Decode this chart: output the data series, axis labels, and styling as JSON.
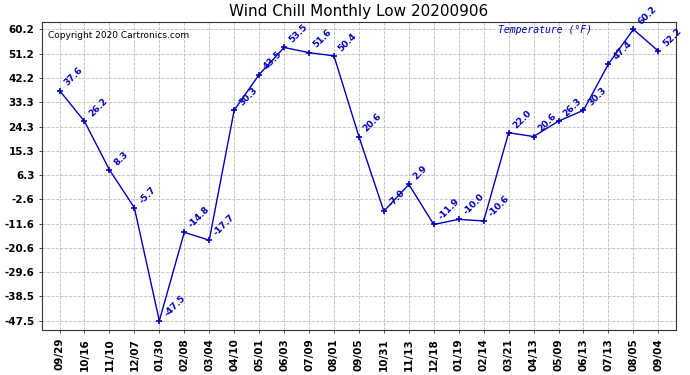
{
  "title": "Wind Chill Monthly Low 20200906",
  "copyright": "Copyright 2020 Cartronics.com",
  "legend_label": "Temperature (°F)",
  "x_labels": [
    "09/29",
    "10/16",
    "11/10",
    "12/07",
    "01/30",
    "02/08",
    "03/04",
    "04/10",
    "05/01",
    "06/03",
    "07/09",
    "08/01",
    "09/05",
    "10/31",
    "11/13",
    "12/18",
    "01/19",
    "02/14",
    "03/21",
    "04/13",
    "05/09",
    "06/13",
    "07/13",
    "08/05",
    "09/04"
  ],
  "y_values": [
    37.6,
    26.2,
    8.3,
    -5.7,
    -47.5,
    -14.8,
    -17.7,
    30.3,
    43.5,
    53.5,
    51.6,
    50.4,
    20.6,
    -7.0,
    2.9,
    -11.9,
    -10.0,
    -10.6,
    22.0,
    20.6,
    26.3,
    30.3,
    47.4,
    60.2,
    52.2
  ],
  "annotations": [
    [
      0,
      37.6,
      "37.6"
    ],
    [
      1,
      26.2,
      "26.2"
    ],
    [
      2,
      8.3,
      "8.3"
    ],
    [
      3,
      -5.7,
      "-5.7"
    ],
    [
      4,
      -47.5,
      "-47.5"
    ],
    [
      5,
      -14.8,
      "-14.8"
    ],
    [
      6,
      -17.7,
      "-17.7"
    ],
    [
      7,
      30.3,
      "30.3"
    ],
    [
      8,
      43.5,
      "43.5"
    ],
    [
      9,
      53.5,
      "53.5"
    ],
    [
      10,
      51.6,
      "51.6"
    ],
    [
      11,
      50.4,
      "50.4"
    ],
    [
      12,
      20.6,
      "20.6"
    ],
    [
      13,
      -7.0,
      "-7.0"
    ],
    [
      14,
      2.9,
      "2.9"
    ],
    [
      15,
      -11.9,
      "-11.9"
    ],
    [
      16,
      -10.0,
      "-10.0"
    ],
    [
      17,
      -10.6,
      "-10.6"
    ],
    [
      18,
      22.0,
      "22.0"
    ],
    [
      19,
      20.6,
      "20.6"
    ],
    [
      20,
      26.3,
      "26.3"
    ],
    [
      21,
      30.3,
      "30.3"
    ],
    [
      22,
      47.4,
      "47.4"
    ],
    [
      23,
      60.2,
      "60.2"
    ],
    [
      24,
      52.2,
      "52.2"
    ]
  ],
  "y_ticks": [
    -47.5,
    -38.5,
    -29.6,
    -20.6,
    -11.6,
    -2.6,
    6.3,
    15.3,
    24.3,
    33.3,
    42.2,
    51.2,
    60.2
  ],
  "line_color": "#0000bb",
  "bg_color": "#ffffff",
  "plot_bg_color": "#ffffff",
  "grid_color": "#bbbbbb",
  "title_fontsize": 11,
  "label_fontsize": 6.5,
  "annot_fontsize": 6.5,
  "tick_fontsize": 7.5,
  "ylim_min": -51.0,
  "ylim_max": 63.0
}
